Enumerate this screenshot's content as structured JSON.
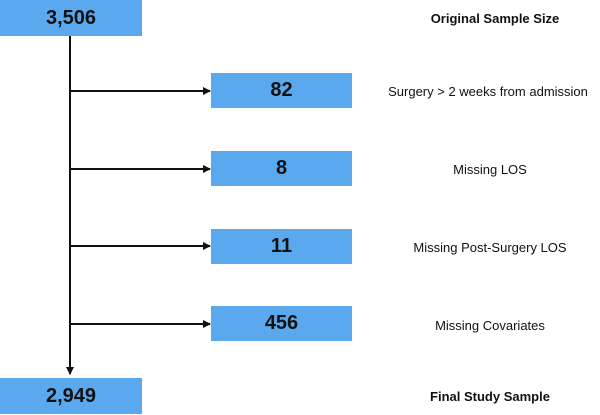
{
  "flow": {
    "start": {
      "count": "3,506",
      "label": "Original Sample Size"
    },
    "exclusions": [
      {
        "count": "82",
        "label": "Surgery > 2 weeks from admission"
      },
      {
        "count": "8",
        "label": "Missing LOS"
      },
      {
        "count": "11",
        "label": "Missing Post-Surgery LOS"
      },
      {
        "count": "456",
        "label": "Missing Covariates"
      }
    ],
    "end": {
      "count": "2,949",
      "label": "Final Study Sample"
    }
  },
  "colors": {
    "box_fill": "#5aa9ee",
    "line": "#111111",
    "text": "#111111"
  }
}
